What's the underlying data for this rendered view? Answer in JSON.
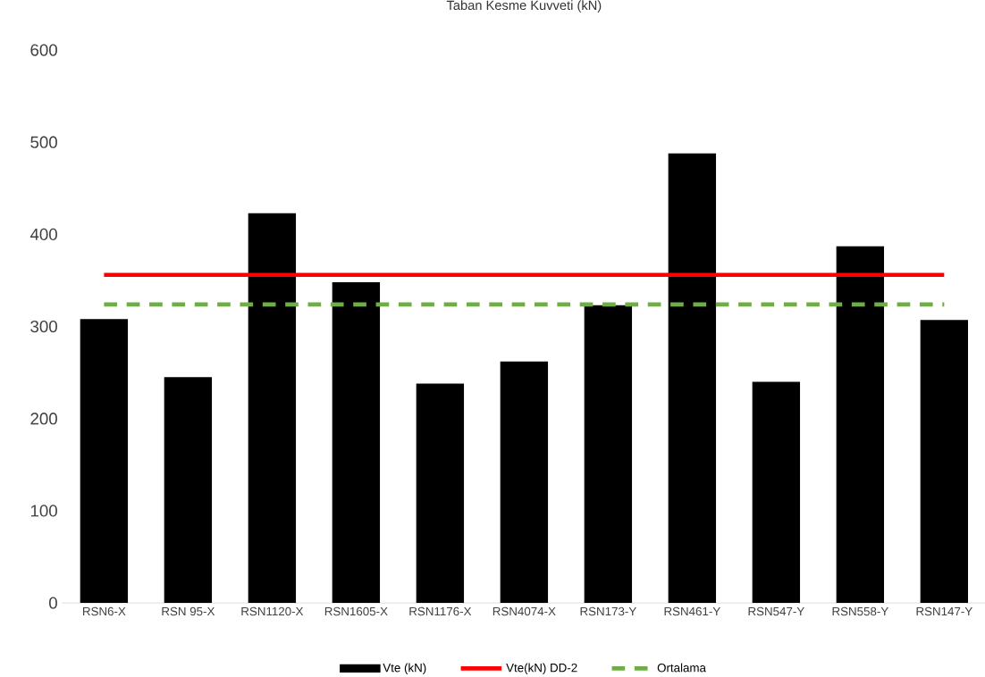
{
  "chart_data": {
    "type": "bar",
    "title": "Taban Kesme Kuvveti (kN)",
    "categories": [
      "RSN6-X",
      "RSN 95-X",
      "RSN1120-X",
      "RSN1605-X",
      "RSN1176-X",
      "RSN4074-X",
      "RSN173-Y",
      "RSN461-Y",
      "RSN547-Y",
      "RSN558-Y",
      "RSN147-Y"
    ],
    "series": [
      {
        "name": "Vte (kN)",
        "color": "#000000",
        "values": [
          308,
          245,
          423,
          348,
          238,
          262,
          323,
          488,
          240,
          387,
          307
        ]
      },
      {
        "name": "Vte(kN) DD-2",
        "type": "line",
        "color": "#ff0000",
        "values": [
          356,
          356,
          356,
          356,
          356,
          356,
          356,
          356,
          356,
          356,
          356
        ]
      },
      {
        "name": "Ortalama",
        "type": "line",
        "color": "#70ad47",
        "line_style": "dashed",
        "values": [
          324,
          324,
          324,
          324,
          324,
          324,
          324,
          324,
          324,
          324,
          324
        ]
      }
    ],
    "ylim": [
      0,
      600
    ],
    "yticks": [
      0,
      100,
      200,
      300,
      400,
      500,
      600
    ],
    "legend": "bottom"
  }
}
